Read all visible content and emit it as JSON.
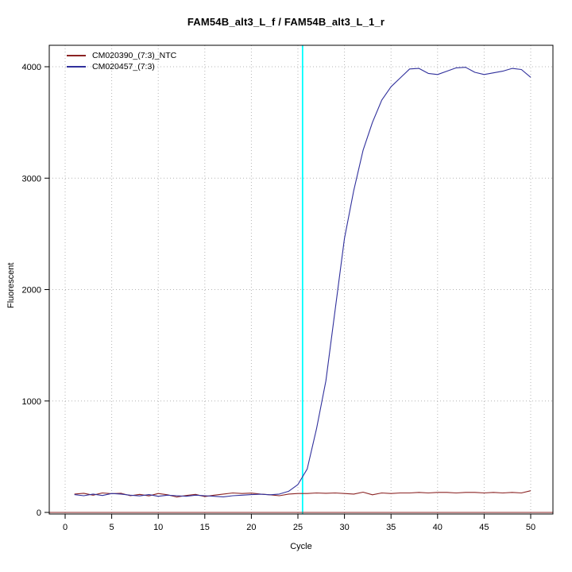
{
  "chart_data": {
    "type": "line",
    "title": "FAM54B_alt3_L_f / FAM54B_alt3_L_1_r",
    "xlabel": "Cycle",
    "ylabel": "Fluorescent",
    "xlim": [
      0,
      50
    ],
    "ylim": [
      0,
      4200
    ],
    "x_ticks": [
      0,
      5,
      10,
      15,
      20,
      25,
      30,
      35,
      40,
      45,
      50
    ],
    "y_ticks": [
      0,
      1000,
      2000,
      3000,
      4000
    ],
    "grid": "dotted",
    "grid_color": "#b4b4b4",
    "frame_color": "#000000",
    "legend_position": "top-left",
    "threshold_line": {
      "x": 25.5,
      "color": "#00ffff"
    },
    "baseline": {
      "y": 0,
      "color": "#8b2323"
    },
    "x": [
      1,
      2,
      3,
      4,
      5,
      6,
      7,
      8,
      9,
      10,
      11,
      12,
      13,
      14,
      15,
      16,
      17,
      18,
      19,
      20,
      21,
      22,
      23,
      24,
      25,
      26,
      27,
      28,
      29,
      30,
      31,
      32,
      33,
      34,
      35,
      36,
      37,
      38,
      39,
      40,
      41,
      42,
      43,
      44,
      45,
      46,
      47,
      48,
      49,
      50
    ],
    "series": [
      {
        "name": "CM020390_(7:3)_NTC",
        "color": "#8b2323",
        "values": [
          165,
          172,
          155,
          175,
          168,
          172,
          150,
          162,
          148,
          170,
          158,
          138,
          152,
          162,
          142,
          155,
          165,
          175,
          170,
          173,
          165,
          158,
          150,
          165,
          170,
          170,
          175,
          172,
          175,
          170,
          165,
          182,
          158,
          175,
          170,
          175,
          175,
          180,
          175,
          180,
          180,
          175,
          180,
          180,
          175,
          180,
          175,
          180,
          175,
          195
        ]
      },
      {
        "name": "CM020457_(7:3)",
        "color": "#30309c",
        "values": [
          160,
          150,
          165,
          152,
          170,
          165,
          155,
          148,
          160,
          145,
          155,
          150,
          145,
          155,
          150,
          145,
          140,
          150,
          155,
          160,
          163,
          158,
          165,
          190,
          250,
          390,
          750,
          1180,
          1820,
          2460,
          2890,
          3250,
          3500,
          3700,
          3820,
          3900,
          3980,
          3985,
          3940,
          3930,
          3960,
          3990,
          3995,
          3950,
          3930,
          3945,
          3960,
          3985,
          3975,
          3905
        ]
      }
    ]
  }
}
